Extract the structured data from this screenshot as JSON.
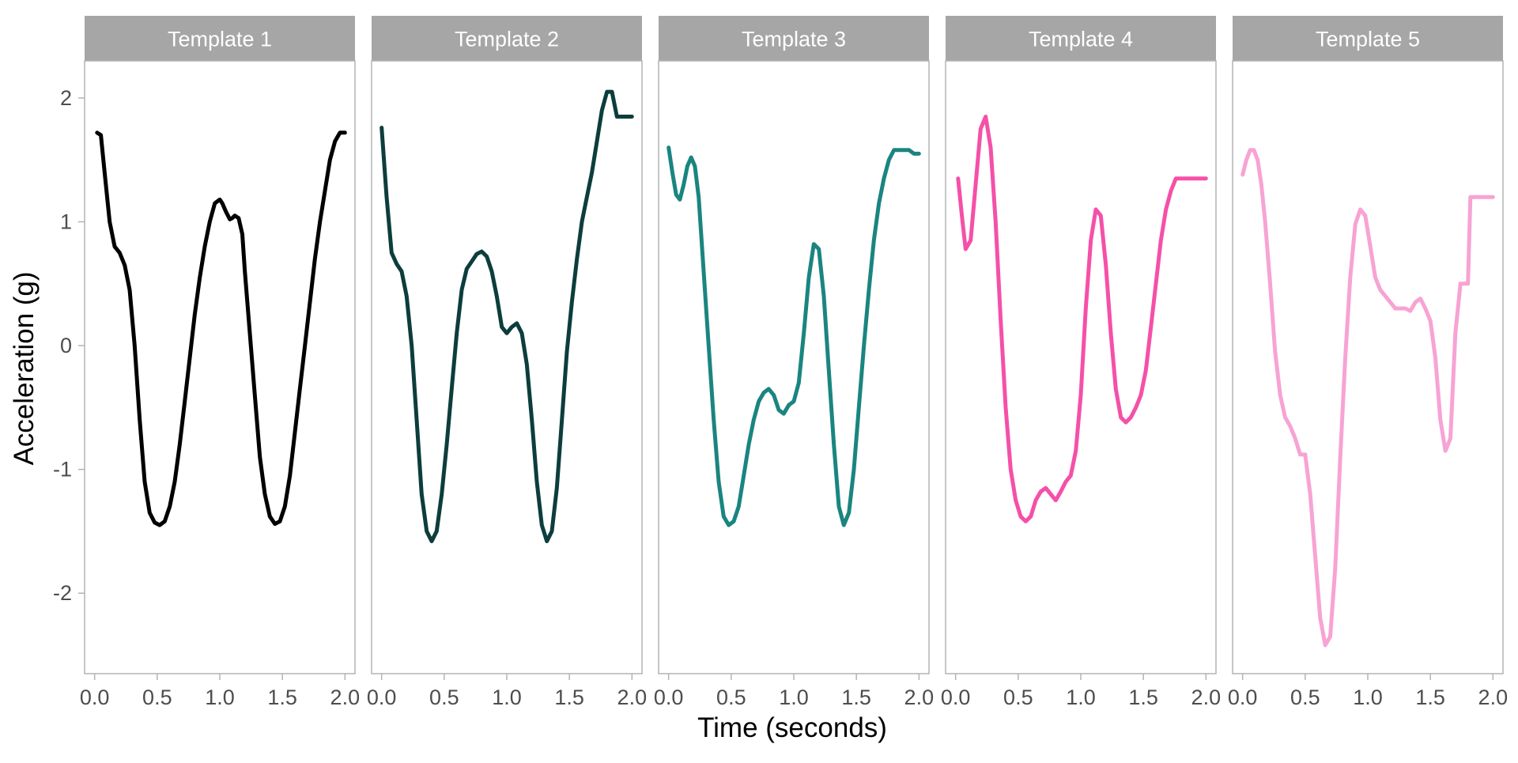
{
  "chart_data": {
    "type": "line",
    "layout": "faceted",
    "xlabel": "Time (seconds)",
    "ylabel": "Acceleration (g)",
    "xlim": [
      -0.08,
      2.08
    ],
    "ylim": [
      -2.65,
      2.3
    ],
    "xticks": [
      0.0,
      0.5,
      1.0,
      1.5,
      2.0
    ],
    "xtick_labels": [
      "0.0",
      "0.5",
      "1.0",
      "1.5",
      "2.0"
    ],
    "yticks": [
      2,
      1,
      0,
      -1,
      -2
    ],
    "ytick_labels": [
      "2",
      "1",
      "0",
      "-1",
      "-2"
    ],
    "grid": false,
    "legend": "none",
    "colors": {
      "strip_bg": "#a6a6a6",
      "strip_text": "#ffffff",
      "panel_border": "#b3b3b3",
      "axis_text": "#4d4d4d",
      "title_text": "#000000"
    },
    "panels": [
      {
        "title": "Template 1",
        "color": "#000000",
        "x": [
          0.02,
          0.05,
          0.08,
          0.12,
          0.16,
          0.2,
          0.24,
          0.28,
          0.32,
          0.36,
          0.4,
          0.44,
          0.48,
          0.52,
          0.56,
          0.6,
          0.64,
          0.68,
          0.72,
          0.76,
          0.8,
          0.84,
          0.88,
          0.92,
          0.96,
          1.0,
          1.02,
          1.05,
          1.08,
          1.1,
          1.12,
          1.15,
          1.18,
          1.2,
          1.24,
          1.28,
          1.32,
          1.36,
          1.4,
          1.44,
          1.48,
          1.52,
          1.56,
          1.6,
          1.64,
          1.68,
          1.72,
          1.76,
          1.8,
          1.84,
          1.88,
          1.92,
          1.96,
          2.0
        ],
        "y": [
          1.72,
          1.7,
          1.4,
          1.0,
          0.8,
          0.75,
          0.65,
          0.45,
          0.0,
          -0.6,
          -1.1,
          -1.35,
          -1.43,
          -1.45,
          -1.42,
          -1.3,
          -1.1,
          -0.8,
          -0.45,
          -0.1,
          0.25,
          0.55,
          0.8,
          1.0,
          1.15,
          1.18,
          1.15,
          1.08,
          1.02,
          1.03,
          1.05,
          1.03,
          0.9,
          0.6,
          0.1,
          -0.4,
          -0.9,
          -1.2,
          -1.38,
          -1.44,
          -1.42,
          -1.3,
          -1.05,
          -0.7,
          -0.35,
          0.0,
          0.35,
          0.7,
          1.0,
          1.25,
          1.5,
          1.65,
          1.72,
          1.72
        ]
      },
      {
        "title": "Template 2",
        "color": "#0d3d3d",
        "x": [
          0.0,
          0.04,
          0.08,
          0.12,
          0.16,
          0.2,
          0.24,
          0.28,
          0.32,
          0.36,
          0.4,
          0.44,
          0.48,
          0.52,
          0.56,
          0.6,
          0.64,
          0.68,
          0.72,
          0.76,
          0.8,
          0.84,
          0.88,
          0.92,
          0.96,
          1.0,
          1.04,
          1.08,
          1.12,
          1.16,
          1.2,
          1.24,
          1.28,
          1.32,
          1.36,
          1.4,
          1.44,
          1.48,
          1.52,
          1.56,
          1.6,
          1.64,
          1.68,
          1.72,
          1.76,
          1.8,
          1.84,
          1.88,
          1.92,
          1.95,
          1.98,
          2.0
        ],
        "y": [
          1.76,
          1.2,
          0.75,
          0.66,
          0.6,
          0.4,
          0.0,
          -0.6,
          -1.2,
          -1.5,
          -1.58,
          -1.5,
          -1.2,
          -0.8,
          -0.35,
          0.1,
          0.45,
          0.62,
          0.68,
          0.74,
          0.76,
          0.72,
          0.6,
          0.4,
          0.15,
          0.1,
          0.15,
          0.18,
          0.1,
          -0.15,
          -0.6,
          -1.1,
          -1.45,
          -1.58,
          -1.5,
          -1.15,
          -0.6,
          -0.05,
          0.35,
          0.7,
          1.0,
          1.2,
          1.4,
          1.65,
          1.9,
          2.05,
          2.05,
          1.85,
          1.85,
          1.85,
          1.85,
          1.85
        ]
      },
      {
        "title": "Template 3",
        "color": "#1a8580",
        "x": [
          0.0,
          0.03,
          0.06,
          0.09,
          0.12,
          0.15,
          0.18,
          0.21,
          0.24,
          0.28,
          0.32,
          0.36,
          0.4,
          0.44,
          0.48,
          0.52,
          0.56,
          0.6,
          0.64,
          0.68,
          0.72,
          0.76,
          0.8,
          0.84,
          0.88,
          0.92,
          0.96,
          1.0,
          1.04,
          1.08,
          1.12,
          1.16,
          1.2,
          1.24,
          1.28,
          1.32,
          1.36,
          1.4,
          1.44,
          1.48,
          1.52,
          1.56,
          1.6,
          1.64,
          1.68,
          1.72,
          1.76,
          1.8,
          1.84,
          1.88,
          1.92,
          1.96,
          2.0
        ],
        "y": [
          1.6,
          1.4,
          1.22,
          1.18,
          1.3,
          1.45,
          1.52,
          1.45,
          1.2,
          0.6,
          0.0,
          -0.6,
          -1.1,
          -1.38,
          -1.45,
          -1.42,
          -1.3,
          -1.05,
          -0.8,
          -0.6,
          -0.45,
          -0.38,
          -0.35,
          -0.4,
          -0.52,
          -0.55,
          -0.48,
          -0.45,
          -0.3,
          0.1,
          0.55,
          0.82,
          0.78,
          0.4,
          -0.2,
          -0.8,
          -1.3,
          -1.45,
          -1.35,
          -1.0,
          -0.5,
          0.0,
          0.45,
          0.85,
          1.15,
          1.35,
          1.5,
          1.58,
          1.58,
          1.58,
          1.58,
          1.55,
          1.55
        ]
      },
      {
        "title": "Template 4",
        "color": "#f550a8",
        "x": [
          0.02,
          0.05,
          0.08,
          0.12,
          0.16,
          0.2,
          0.24,
          0.28,
          0.32,
          0.36,
          0.4,
          0.44,
          0.48,
          0.52,
          0.56,
          0.6,
          0.64,
          0.68,
          0.72,
          0.76,
          0.8,
          0.84,
          0.88,
          0.92,
          0.96,
          1.0,
          1.04,
          1.08,
          1.12,
          1.16,
          1.2,
          1.24,
          1.28,
          1.32,
          1.36,
          1.4,
          1.44,
          1.48,
          1.52,
          1.56,
          1.6,
          1.64,
          1.68,
          1.72,
          1.76,
          1.8,
          1.84,
          1.88,
          1.92,
          1.96,
          2.0
        ],
        "y": [
          1.35,
          1.05,
          0.78,
          0.85,
          1.3,
          1.75,
          1.85,
          1.6,
          1.0,
          0.2,
          -0.5,
          -1.0,
          -1.25,
          -1.38,
          -1.42,
          -1.38,
          -1.25,
          -1.18,
          -1.15,
          -1.2,
          -1.25,
          -1.18,
          -1.1,
          -1.05,
          -0.85,
          -0.4,
          0.3,
          0.85,
          1.1,
          1.05,
          0.65,
          0.1,
          -0.35,
          -0.58,
          -0.62,
          -0.58,
          -0.5,
          -0.4,
          -0.2,
          0.15,
          0.5,
          0.85,
          1.1,
          1.25,
          1.35,
          1.35,
          1.35,
          1.35,
          1.35,
          1.35,
          1.35
        ]
      },
      {
        "title": "Template 5",
        "color": "#f7a3d4",
        "x": [
          0.0,
          0.03,
          0.06,
          0.09,
          0.12,
          0.15,
          0.18,
          0.22,
          0.26,
          0.3,
          0.34,
          0.38,
          0.42,
          0.46,
          0.5,
          0.54,
          0.58,
          0.62,
          0.66,
          0.7,
          0.74,
          0.78,
          0.82,
          0.86,
          0.9,
          0.94,
          0.98,
          1.02,
          1.06,
          1.1,
          1.14,
          1.18,
          1.22,
          1.26,
          1.3,
          1.34,
          1.38,
          1.42,
          1.46,
          1.5,
          1.54,
          1.58,
          1.62,
          1.66,
          1.7,
          1.74,
          1.78,
          1.8,
          1.82,
          1.86,
          1.9,
          1.94,
          1.98,
          2.0
        ],
        "y": [
          1.38,
          1.5,
          1.58,
          1.58,
          1.5,
          1.3,
          1.0,
          0.5,
          -0.05,
          -0.4,
          -0.58,
          -0.65,
          -0.75,
          -0.88,
          -0.88,
          -1.2,
          -1.7,
          -2.2,
          -2.42,
          -2.35,
          -1.8,
          -0.9,
          -0.1,
          0.55,
          0.98,
          1.1,
          1.05,
          0.8,
          0.55,
          0.45,
          0.4,
          0.35,
          0.3,
          0.3,
          0.3,
          0.28,
          0.35,
          0.38,
          0.3,
          0.2,
          -0.1,
          -0.6,
          -0.85,
          -0.75,
          0.1,
          0.5,
          0.5,
          0.5,
          1.2,
          1.2,
          1.2,
          1.2,
          1.2,
          1.2
        ]
      }
    ]
  }
}
